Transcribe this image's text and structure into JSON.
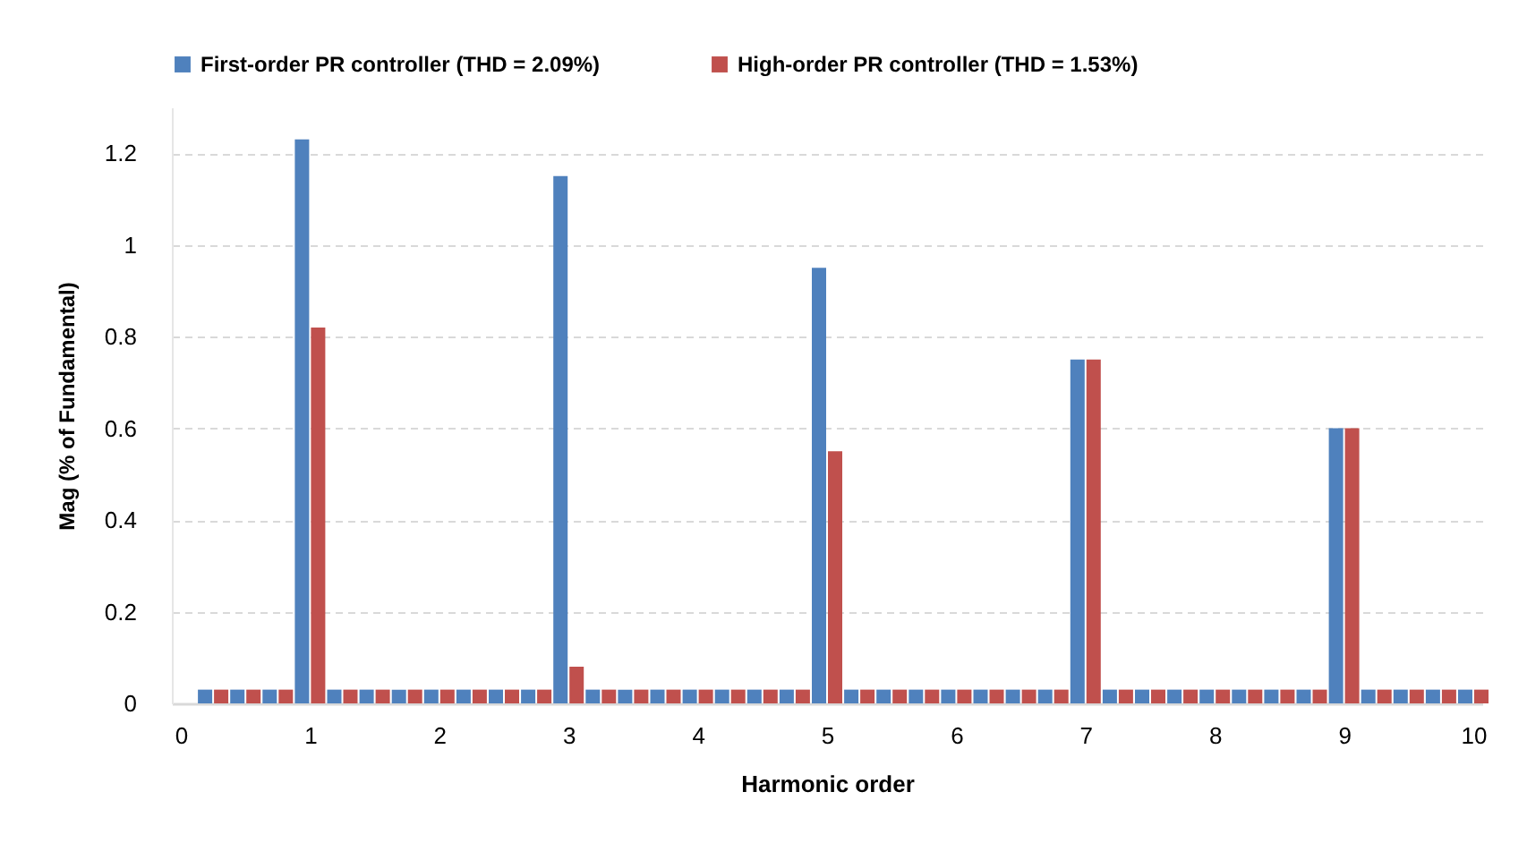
{
  "chart_data": {
    "type": "bar",
    "xlabel": "Harmonic order",
    "ylabel": "Mag (% of Fundamental)",
    "x": [
      0.25,
      0.5,
      0.75,
      1,
      1.25,
      1.5,
      1.75,
      2,
      2.25,
      2.5,
      2.75,
      3,
      3.25,
      3.5,
      3.75,
      4,
      4.25,
      4.5,
      4.75,
      5,
      5.25,
      5.5,
      5.75,
      6,
      6.25,
      6.5,
      6.75,
      7,
      7.25,
      7.5,
      7.75,
      8,
      8.25,
      8.5,
      8.75,
      9,
      9.25,
      9.5,
      9.75,
      10
    ],
    "series": [
      {
        "name": "First-order PR controller (THD = 2.09%)",
        "color": "#4f81bd",
        "values": [
          0.03,
          0.03,
          0.03,
          1.23,
          0.03,
          0.03,
          0.03,
          0.03,
          0.03,
          0.03,
          0.03,
          1.15,
          0.03,
          0.03,
          0.03,
          0.03,
          0.03,
          0.03,
          0.03,
          0.95,
          0.03,
          0.03,
          0.03,
          0.03,
          0.03,
          0.03,
          0.03,
          0.75,
          0.03,
          0.03,
          0.03,
          0.03,
          0.03,
          0.03,
          0.03,
          0.6,
          0.03,
          0.03,
          0.03,
          0.03
        ]
      },
      {
        "name": "High-order PR controller (THD = 1.53%)",
        "color": "#c0504d",
        "values": [
          0.03,
          0.03,
          0.03,
          0.82,
          0.03,
          0.03,
          0.03,
          0.03,
          0.03,
          0.03,
          0.03,
          0.08,
          0.03,
          0.03,
          0.03,
          0.03,
          0.03,
          0.03,
          0.03,
          0.55,
          0.03,
          0.03,
          0.03,
          0.03,
          0.03,
          0.03,
          0.03,
          0.75,
          0.03,
          0.03,
          0.03,
          0.03,
          0.03,
          0.03,
          0.03,
          0.6,
          0.03,
          0.03,
          0.03,
          0.03
        ]
      }
    ],
    "xlim": [
      0,
      10
    ],
    "xticks": [
      0,
      1,
      2,
      3,
      4,
      5,
      6,
      7,
      8,
      9,
      10
    ],
    "ylim": [
      0,
      1.3
    ],
    "yticks": [
      0,
      0.2,
      0.4,
      0.6,
      0.8,
      1,
      1.2
    ],
    "grid": "y",
    "legend": "top"
  }
}
